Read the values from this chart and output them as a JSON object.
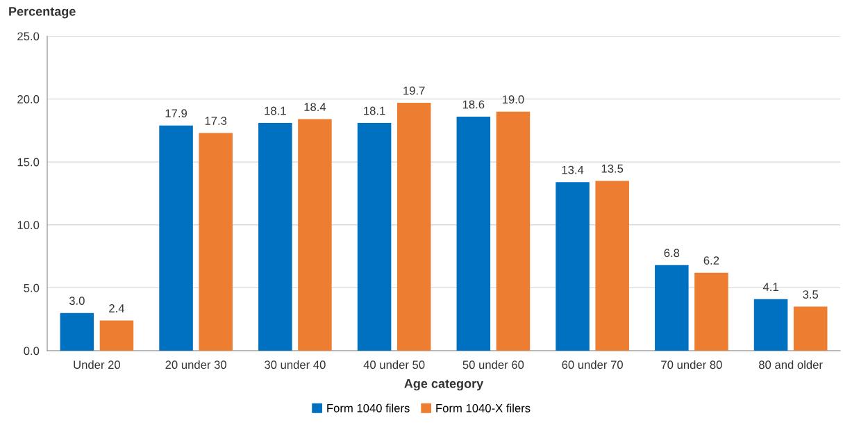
{
  "chart_data": {
    "type": "bar",
    "xlabel": "Age category",
    "ylabel": "Percentage",
    "categories": [
      "Under 20",
      "20 under 30",
      "30 under 40",
      "40 under 50",
      "50 under 60",
      "60 under 70",
      "70 under 80",
      "80 and older"
    ],
    "series": [
      {
        "name": "Form 1040 filers",
        "color": "#0070c0",
        "values": [
          3.0,
          17.9,
          18.1,
          18.1,
          18.6,
          13.4,
          6.8,
          4.1
        ],
        "value_labels": [
          "3.0",
          "17.9",
          "18.1",
          "18.1",
          "18.6",
          "13.4",
          "6.8",
          "4.1"
        ]
      },
      {
        "name": "Form 1040-X filers",
        "color": "#ed7d31",
        "values": [
          2.4,
          17.3,
          18.4,
          19.7,
          19.0,
          13.5,
          6.2,
          3.5
        ],
        "value_labels": [
          "2.4",
          "17.3",
          "18.4",
          "19.7",
          "19.0",
          "13.5",
          "6.2",
          "3.5"
        ]
      }
    ],
    "ylim": [
      0,
      25
    ],
    "yticks": [
      {
        "value": 0,
        "label": "0.0"
      },
      {
        "value": 5,
        "label": "5.0"
      },
      {
        "value": 10,
        "label": "10.0"
      },
      {
        "value": 15,
        "label": "15.0"
      },
      {
        "value": 20,
        "label": "20.0"
      },
      {
        "value": 25,
        "label": "25.0"
      }
    ],
    "grid": "y",
    "legend": "bottom"
  }
}
